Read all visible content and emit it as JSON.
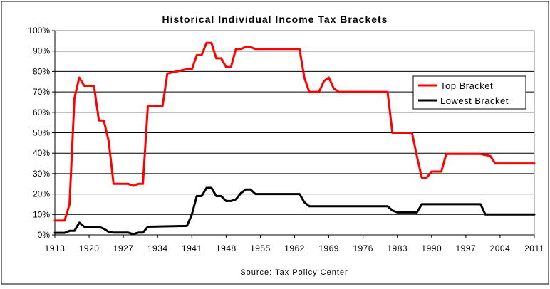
{
  "chart_data": {
    "type": "line",
    "title": "Historical Individual Income Tax Brackets",
    "source": "Source: Tax Policy Center",
    "xlabel": "",
    "ylabel": "",
    "xlim": [
      1913,
      2011
    ],
    "ylim": [
      0,
      100
    ],
    "x_ticks": [
      "1913",
      "1920",
      "1927",
      "1934",
      "1941",
      "1948",
      "1955",
      "1962",
      "1969",
      "1976",
      "1983",
      "1990",
      "1997",
      "2004",
      "2011"
    ],
    "y_ticks": [
      "0%",
      "10%",
      "20%",
      "30%",
      "40%",
      "50%",
      "60%",
      "70%",
      "80%",
      "90%",
      "100%"
    ],
    "grid": "horizontal",
    "legend_position": "right",
    "series": [
      {
        "name": "Top Bracket",
        "color": "#ff0000",
        "points": [
          [
            1913,
            7
          ],
          [
            1915,
            7
          ],
          [
            1916,
            15
          ],
          [
            1917,
            67
          ],
          [
            1918,
            77
          ],
          [
            1919,
            73
          ],
          [
            1921,
            73
          ],
          [
            1922,
            56
          ],
          [
            1923,
            56
          ],
          [
            1924,
            46
          ],
          [
            1925,
            25
          ],
          [
            1928,
            25
          ],
          [
            1929,
            24
          ],
          [
            1930,
            25
          ],
          [
            1931,
            25
          ],
          [
            1932,
            63
          ],
          [
            1935,
            63
          ],
          [
            1936,
            79
          ],
          [
            1940,
            81.1
          ],
          [
            1941,
            81
          ],
          [
            1942,
            88
          ],
          [
            1943,
            88
          ],
          [
            1944,
            94
          ],
          [
            1945,
            94
          ],
          [
            1946,
            86.45
          ],
          [
            1947,
            86.45
          ],
          [
            1948,
            82.13
          ],
          [
            1949,
            82.13
          ],
          [
            1950,
            91
          ],
          [
            1951,
            91
          ],
          [
            1952,
            92
          ],
          [
            1953,
            92
          ],
          [
            1954,
            91
          ],
          [
            1963,
            91
          ],
          [
            1964,
            77
          ],
          [
            1965,
            70
          ],
          [
            1967,
            70
          ],
          [
            1968,
            75.25
          ],
          [
            1969,
            77
          ],
          [
            1970,
            71.75
          ],
          [
            1971,
            70
          ],
          [
            1981,
            70
          ],
          [
            1982,
            50
          ],
          [
            1986,
            50
          ],
          [
            1987,
            38.5
          ],
          [
            1988,
            28
          ],
          [
            1989,
            28
          ],
          [
            1990,
            31
          ],
          [
            1992,
            31
          ],
          [
            1993,
            39.6
          ],
          [
            2000,
            39.6
          ],
          [
            2001,
            39.1
          ],
          [
            2002,
            38.6
          ],
          [
            2003,
            35
          ],
          [
            2011,
            35
          ]
        ]
      },
      {
        "name": "Lowest Bracket",
        "color": "#000000",
        "points": [
          [
            1913,
            1
          ],
          [
            1915,
            1
          ],
          [
            1916,
            2
          ],
          [
            1917,
            2
          ],
          [
            1918,
            6
          ],
          [
            1919,
            4
          ],
          [
            1922,
            4
          ],
          [
            1923,
            3
          ],
          [
            1924,
            1.5
          ],
          [
            1925,
            1.125
          ],
          [
            1928,
            1.125
          ],
          [
            1929,
            0.375
          ],
          [
            1930,
            1.125
          ],
          [
            1931,
            1.125
          ],
          [
            1932,
            4
          ],
          [
            1940,
            4.4
          ],
          [
            1941,
            10
          ],
          [
            1942,
            19
          ],
          [
            1943,
            19
          ],
          [
            1944,
            23
          ],
          [
            1945,
            23
          ],
          [
            1946,
            19
          ],
          [
            1947,
            19
          ],
          [
            1948,
            16.6
          ],
          [
            1949,
            16.6
          ],
          [
            1950,
            17.4
          ],
          [
            1951,
            20.4
          ],
          [
            1952,
            22.2
          ],
          [
            1953,
            22.2
          ],
          [
            1954,
            20
          ],
          [
            1963,
            20
          ],
          [
            1964,
            16
          ],
          [
            1965,
            14
          ],
          [
            1981,
            14
          ],
          [
            1982,
            12
          ],
          [
            1983,
            11
          ],
          [
            1986,
            11
          ],
          [
            1987,
            11
          ],
          [
            1988,
            15
          ],
          [
            2000,
            15
          ],
          [
            2001,
            10
          ],
          [
            2011,
            10
          ]
        ]
      }
    ]
  }
}
